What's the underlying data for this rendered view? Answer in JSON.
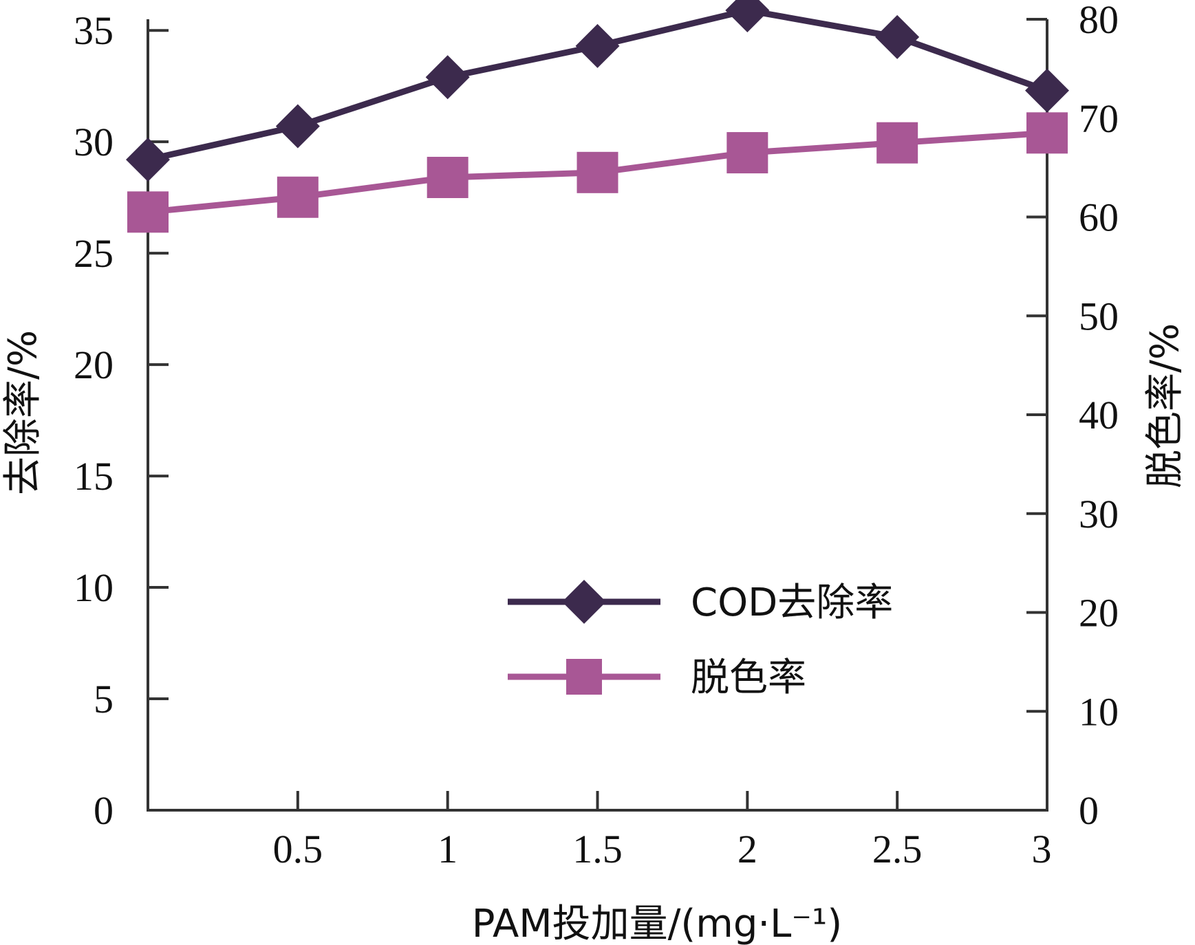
{
  "chart_data": {
    "type": "line",
    "title": "",
    "xlabel": "PAM投加量/(mg·L⁻¹)",
    "ylabel_left": "去除率/%",
    "ylabel_right": "脱色率/%",
    "x": [
      0,
      0.5,
      1,
      1.5,
      2,
      2.5,
      3
    ],
    "x_tick_labels": [
      "0.5",
      "1",
      "1.5",
      "2",
      "2.5",
      "3"
    ],
    "x_ticks": [
      0.5,
      1,
      1.5,
      2,
      2.5,
      3
    ],
    "xlim": [
      0,
      3
    ],
    "ylim_left": [
      0,
      35.5
    ],
    "ylim_right": [
      0,
      80
    ],
    "left_ticks": [
      "0",
      "5",
      "10",
      "15",
      "20",
      "25",
      "30",
      "35"
    ],
    "right_ticks": [
      "0",
      "10",
      "20",
      "30",
      "40",
      "50",
      "60",
      "70",
      "80"
    ],
    "grid": false,
    "legend_position": "lower-center",
    "series": [
      {
        "name": "COD去除率",
        "axis": "left",
        "marker": "diamond",
        "color": "#3c2a4d",
        "values": [
          29.2,
          30.7,
          32.9,
          34.3,
          35.9,
          34.7,
          32.3
        ]
      },
      {
        "name": "脱色率",
        "axis": "right",
        "marker": "square",
        "color": "#a85795",
        "values": [
          60.5,
          62.0,
          64.0,
          64.5,
          66.5,
          67.5,
          68.5
        ]
      }
    ]
  }
}
